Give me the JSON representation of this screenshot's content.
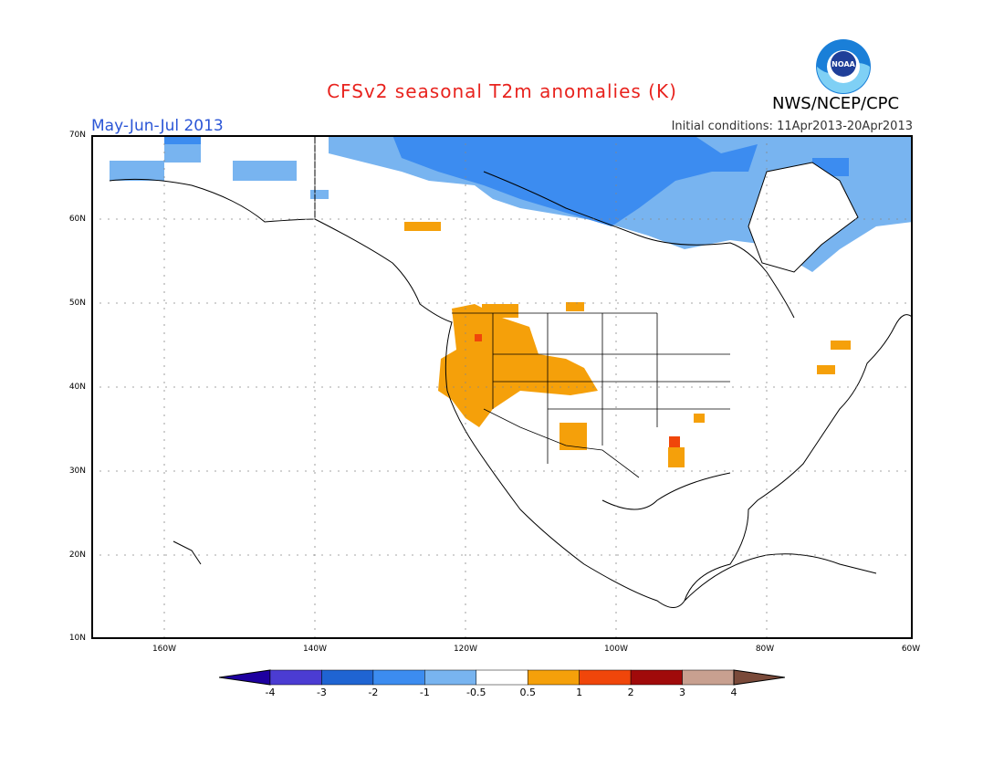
{
  "title": "CFSv2 seasonal T2m anomalies (K)",
  "period": "May-Jun-Jul 2013",
  "initial_conditions": "Initial conditions: 11Apr2013-20Apr2013",
  "agency": "NWS/NCEP/CPC",
  "logo_text": "NOAA",
  "latitude_labels": [
    "70N",
    "60N",
    "50N",
    "40N",
    "30N",
    "20N",
    "10N"
  ],
  "longitude_labels": [
    "160W",
    "140W",
    "120W",
    "100W",
    "80W",
    "60W"
  ],
  "colorbar": {
    "ticks": [
      "-4",
      "-3",
      "-2",
      "-1",
      "-0.5",
      "0.5",
      "1",
      "2",
      "3",
      "4"
    ],
    "colors": [
      "#1e00a0",
      "#4b3cd2",
      "#1f64d2",
      "#3c8cf0",
      "#78b4f0",
      "#ffffff",
      "#f5a00a",
      "#f0460a",
      "#a00a0a",
      "#c8a090",
      "#7a4a3a"
    ]
  },
  "colors": {
    "land_outline": "#000000",
    "grid": "#888888",
    "title": "#e8231e",
    "period": "#2a55d6"
  }
}
